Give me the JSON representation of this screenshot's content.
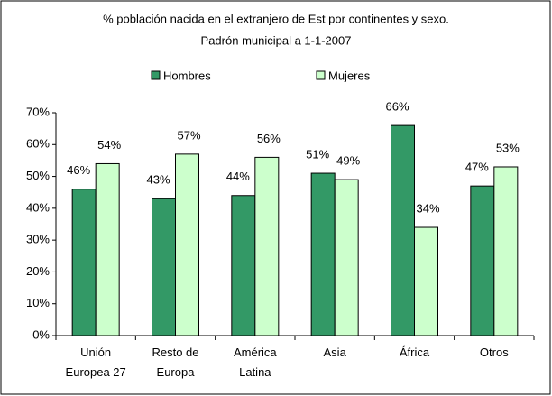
{
  "chart_data": {
    "type": "bar",
    "title": "% población nacida en el extranjero de Est por continentes y sexo.",
    "subtitle": "Padrón municipal a 1-1-2007",
    "categories": [
      [
        "Unión",
        "Europea 27"
      ],
      [
        "Resto de",
        "Europa"
      ],
      [
        "América",
        "Latina"
      ],
      [
        "Asia"
      ],
      [
        "África"
      ],
      [
        "Otros"
      ]
    ],
    "series": [
      {
        "name": "Hombres",
        "color": "#339966",
        "values": [
          46,
          43,
          44,
          51,
          66,
          47
        ],
        "value_labels": [
          "46%",
          "43%",
          "44%",
          "51%",
          "66%",
          "47%"
        ]
      },
      {
        "name": "Mujeres",
        "color": "#ccffcc",
        "values": [
          54,
          57,
          56,
          49,
          34,
          53
        ],
        "value_labels": [
          "54%",
          "57%",
          "56%",
          "49%",
          "34%",
          "53%"
        ]
      }
    ],
    "ylim": [
      0,
      70
    ],
    "yticks": [
      {
        "value": 0,
        "label": "0%"
      },
      {
        "value": 10,
        "label": "10%"
      },
      {
        "value": 20,
        "label": "20%"
      },
      {
        "value": 30,
        "label": "30%"
      },
      {
        "value": 40,
        "label": "40%"
      },
      {
        "value": 50,
        "label": "50%"
      },
      {
        "value": 60,
        "label": "60%"
      },
      {
        "value": 70,
        "label": "70%"
      }
    ],
    "legend": "top"
  }
}
